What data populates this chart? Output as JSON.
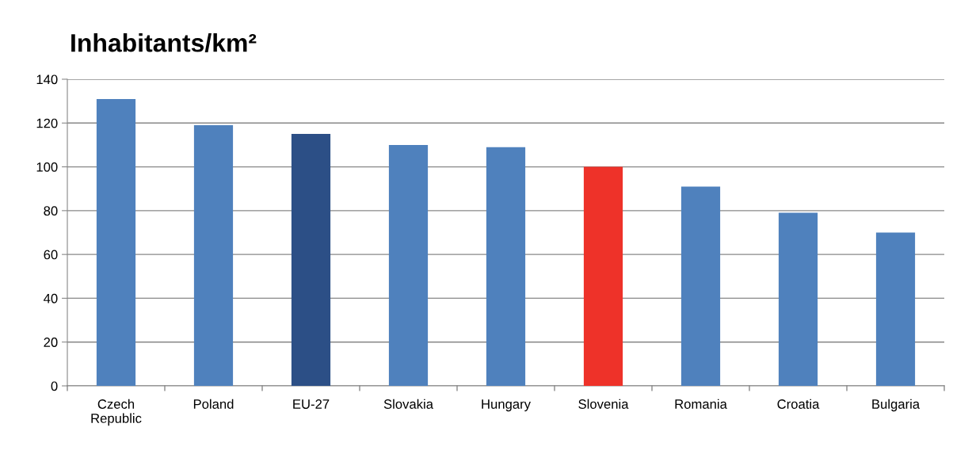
{
  "chart_data": {
    "type": "bar",
    "title": "Inhabitants/km²",
    "categories": [
      "Czech\nRepublic",
      "Poland",
      "EU-27",
      "Slovakia",
      "Hungary",
      "Slovenia",
      "Romania",
      "Croatia",
      "Bulgaria"
    ],
    "values": [
      131,
      119,
      115,
      110,
      109,
      100,
      91,
      79,
      70
    ],
    "colors": [
      "#4f81bd",
      "#4f81bd",
      "#2c4f86",
      "#4f81bd",
      "#4f81bd",
      "#ee3229",
      "#4f81bd",
      "#4f81bd",
      "#4f81bd"
    ],
    "ylim": [
      0,
      140
    ],
    "yticks": [
      0,
      20,
      40,
      60,
      80,
      100,
      120,
      140
    ],
    "grid": "y",
    "legend": false
  }
}
